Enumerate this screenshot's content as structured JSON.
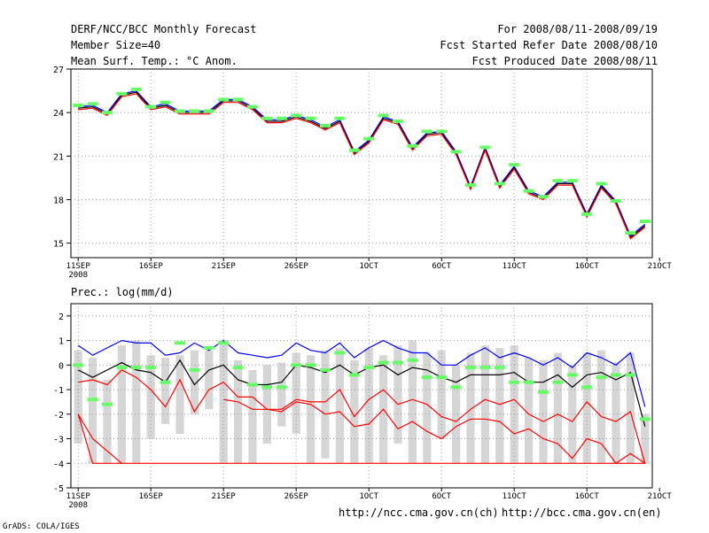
{
  "header": {
    "title": "DERF/NCC/BCC Monthly Forecast",
    "member_size": "Member Size=40",
    "variable": "Mean Surf. Temp.: °C Anom.",
    "period": "For 2008/08/11-2008/09/19",
    "started": "Fcst Started Refer Date 2008/08/10",
    "produced": "Fcst Produced Date 2008/08/11"
  },
  "footer": {
    "url_ncc": "http://ncc.cma.gov.cn(ch)",
    "url_bcc": "http://bcc.cma.gov.cn(en)",
    "credit": "GrADS: COLA/IGES"
  },
  "colors": {
    "upper": "#0000ff",
    "mean": "#000000",
    "lower": "#ff0000",
    "obs": "#66ff66",
    "spread": "#d6d6d6",
    "grid": "#999999",
    "axis": "#000000"
  },
  "chart_data": [
    {
      "type": "line",
      "title": "Mean Surf. Temp.: °C Anom.",
      "x": [
        1,
        2,
        3,
        4,
        5,
        6,
        7,
        8,
        9,
        10,
        11,
        12,
        13,
        14,
        15,
        16,
        17,
        18,
        19,
        20,
        21,
        22,
        23,
        24,
        25,
        26,
        27,
        28,
        29,
        30,
        31,
        32,
        33,
        34,
        35,
        36,
        37,
        38,
        39,
        40
      ],
      "xlim": [
        0.5,
        40.5
      ],
      "ylim": [
        14,
        27
      ],
      "yticks": [
        15,
        18,
        21,
        24,
        27
      ],
      "xtick_labels": [
        {
          "x": 1,
          "label": "11SEP"
        },
        {
          "x": 6,
          "label": "16SEP"
        },
        {
          "x": 11,
          "label": "21SEP"
        },
        {
          "x": 16,
          "label": "26SEP"
        },
        {
          "x": 21,
          "label": "1OCT"
        },
        {
          "x": 26,
          "label": "6OCT"
        },
        {
          "x": 31,
          "label": "11OCT"
        },
        {
          "x": 36,
          "label": "16OCT"
        },
        {
          "x": 41,
          "label": "21OCT"
        }
      ],
      "year_label": "2008",
      "series": [
        {
          "name": "upper",
          "values": [
            24.4,
            24.5,
            24.0,
            25.3,
            25.5,
            24.4,
            24.6,
            24.1,
            24.1,
            24.1,
            24.9,
            24.9,
            24.4,
            23.5,
            23.5,
            23.8,
            23.5,
            23.0,
            23.5,
            21.3,
            22.1,
            23.7,
            23.4,
            21.6,
            22.6,
            22.7,
            21.3,
            18.9,
            21.6,
            19.0,
            20.3,
            18.6,
            18.2,
            19.2,
            19.2,
            17.0,
            19.0,
            17.9,
            15.5,
            16.3
          ]
        },
        {
          "name": "mean",
          "values": [
            24.3,
            24.4,
            23.9,
            25.2,
            25.4,
            24.3,
            24.5,
            24.0,
            24.0,
            24.0,
            24.8,
            24.8,
            24.3,
            23.4,
            23.4,
            23.7,
            23.4,
            22.9,
            23.4,
            21.2,
            22.0,
            23.6,
            23.3,
            21.5,
            22.5,
            22.6,
            21.2,
            18.8,
            21.5,
            18.9,
            20.2,
            18.5,
            18.1,
            19.1,
            19.1,
            16.9,
            18.9,
            17.8,
            15.4,
            16.2
          ]
        },
        {
          "name": "lower",
          "values": [
            24.2,
            24.3,
            23.8,
            25.1,
            25.3,
            24.2,
            24.4,
            23.9,
            23.9,
            23.9,
            24.7,
            24.7,
            24.2,
            23.3,
            23.3,
            23.6,
            23.3,
            22.8,
            23.3,
            21.1,
            21.9,
            23.5,
            23.2,
            21.4,
            22.4,
            22.5,
            21.1,
            18.7,
            21.4,
            18.8,
            20.1,
            18.4,
            18.0,
            19.0,
            19.0,
            16.8,
            18.8,
            17.7,
            15.3,
            16.1
          ]
        },
        {
          "name": "obs",
          "values": [
            24.5,
            24.6,
            24.0,
            25.3,
            25.6,
            24.4,
            24.7,
            24.1,
            24.1,
            24.1,
            24.9,
            24.9,
            24.4,
            23.6,
            23.6,
            23.8,
            23.6,
            23.1,
            23.6,
            21.4,
            22.2,
            23.8,
            23.4,
            21.7,
            22.7,
            22.7,
            21.3,
            19.0,
            21.6,
            19.1,
            20.4,
            18.6,
            18.2,
            19.3,
            19.3,
            17.0,
            19.1,
            17.9,
            15.7,
            16.5
          ]
        }
      ]
    },
    {
      "type": "line",
      "title": "Prec.: log(mm/d)",
      "x": [
        1,
        2,
        3,
        4,
        5,
        6,
        7,
        8,
        9,
        10,
        11,
        12,
        13,
        14,
        15,
        16,
        17,
        18,
        19,
        20,
        21,
        22,
        23,
        24,
        25,
        26,
        27,
        28,
        29,
        30,
        31,
        32,
        33,
        34,
        35,
        36,
        37,
        38,
        39,
        40
      ],
      "xlim": [
        0.5,
        40.5
      ],
      "ylim": [
        -5,
        2.5
      ],
      "yticks": [
        -5,
        -4,
        -3,
        -2,
        -1,
        0,
        1,
        2
      ],
      "xtick_labels": [
        {
          "x": 1,
          "label": "11SEP"
        },
        {
          "x": 6,
          "label": "16SEP"
        },
        {
          "x": 11,
          "label": "21SEP"
        },
        {
          "x": 16,
          "label": "26SEP"
        },
        {
          "x": 21,
          "label": "1OCT"
        },
        {
          "x": 26,
          "label": "6OCT"
        },
        {
          "x": 31,
          "label": "11OCT"
        },
        {
          "x": 36,
          "label": "16OCT"
        },
        {
          "x": 41,
          "label": "21OCT"
        }
      ],
      "year_label": "2008",
      "spread_bars": [
        {
          "lo": -3.2,
          "hi": 0.6
        },
        {
          "lo": -4.0,
          "hi": 0.3
        },
        {
          "lo": -4.0,
          "hi": -0.6
        },
        {
          "lo": -4.0,
          "hi": 0.8
        },
        {
          "lo": -4.0,
          "hi": 1.0
        },
        {
          "lo": -3.0,
          "hi": 0.4
        },
        {
          "lo": -2.4,
          "hi": 0.3
        },
        {
          "lo": -2.8,
          "hi": 0.4
        },
        {
          "lo": -2.0,
          "hi": 0.6
        },
        {
          "lo": -1.8,
          "hi": 0.6
        },
        {
          "lo": -4.0,
          "hi": 1.0
        },
        {
          "lo": -4.0,
          "hi": 0.2
        },
        {
          "lo": -4.0,
          "hi": -0.2
        },
        {
          "lo": -3.2,
          "hi": 0.0
        },
        {
          "lo": -2.5,
          "hi": 0.1
        },
        {
          "lo": -2.8,
          "hi": 0.5
        },
        {
          "lo": -4.0,
          "hi": 0.4
        },
        {
          "lo": -3.8,
          "hi": 0.6
        },
        {
          "lo": -4.0,
          "hi": 0.7
        },
        {
          "lo": -4.0,
          "hi": 0.2
        },
        {
          "lo": -4.0,
          "hi": 0.7
        },
        {
          "lo": -4.0,
          "hi": 0.4
        },
        {
          "lo": -3.2,
          "hi": 0.8
        },
        {
          "lo": -4.0,
          "hi": 1.0
        },
        {
          "lo": -4.0,
          "hi": 0.5
        },
        {
          "lo": -3.0,
          "hi": 0.6
        },
        {
          "lo": -4.0,
          "hi": 0.0
        },
        {
          "lo": -4.0,
          "hi": 0.5
        },
        {
          "lo": -4.0,
          "hi": 0.8
        },
        {
          "lo": -4.0,
          "hi": 0.7
        },
        {
          "lo": -4.0,
          "hi": 0.8
        },
        {
          "lo": -4.0,
          "hi": 0.3
        },
        {
          "lo": -4.0,
          "hi": 0.2
        },
        {
          "lo": -4.0,
          "hi": 0.5
        },
        {
          "lo": -4.0,
          "hi": 0.0
        },
        {
          "lo": -4.0,
          "hi": 0.5
        },
        {
          "lo": -4.0,
          "hi": 0.6
        },
        {
          "lo": -4.0,
          "hi": 0.1
        },
        {
          "lo": -4.0,
          "hi": 0.5
        },
        {
          "lo": -4.0,
          "hi": -2.0
        }
      ],
      "series": [
        {
          "name": "upper",
          "values": [
            0.8,
            0.4,
            0.7,
            1.0,
            0.9,
            0.9,
            0.4,
            0.5,
            0.9,
            0.6,
            1.0,
            0.5,
            0.4,
            0.3,
            0.4,
            0.9,
            0.6,
            0.5,
            0.9,
            0.3,
            0.7,
            1.0,
            0.7,
            0.5,
            0.5,
            0.0,
            0.0,
            0.4,
            0.7,
            0.3,
            0.5,
            0.3,
            0.0,
            0.3,
            -0.1,
            0.5,
            0.3,
            0.0,
            0.5,
            -1.7
          ]
        },
        {
          "name": "mean",
          "values": [
            -0.2,
            -0.5,
            -0.2,
            0.1,
            -0.2,
            -0.3,
            -0.7,
            0.2,
            -0.8,
            -0.2,
            0.0,
            -0.6,
            -0.8,
            -0.8,
            -0.7,
            0.0,
            -0.1,
            -0.3,
            0.0,
            -0.4,
            -0.1,
            0.0,
            -0.4,
            -0.1,
            -0.2,
            -0.5,
            -0.7,
            -0.4,
            -0.4,
            -0.4,
            -0.3,
            -0.7,
            -0.7,
            -0.4,
            -0.9,
            -0.4,
            -0.3,
            -0.6,
            -0.3,
            -2.5
          ]
        },
        {
          "name": "lower",
          "values": [
            -0.7,
            -0.6,
            -0.8,
            -0.2,
            -0.5,
            -1.0,
            -1.7,
            -0.6,
            -1.9,
            -1.0,
            -0.7,
            -1.3,
            -1.3,
            -1.8,
            -1.8,
            -1.4,
            -1.5,
            -1.5,
            -1.0,
            -2.1,
            -1.4,
            -1.0,
            -1.6,
            -1.4,
            -1.6,
            -2.1,
            -2.3,
            -1.8,
            -1.4,
            -1.6,
            -1.4,
            -2.0,
            -2.3,
            -2.0,
            -2.3,
            -1.5,
            -2.1,
            -2.3,
            -1.9,
            -4.0
          ]
        },
        {
          "name": "min",
          "values": [
            -2.0,
            -4.0,
            -4.0,
            -4.0,
            -4.0,
            -4.0,
            -4.0,
            -4.0,
            -4.0,
            -4.0,
            -4.0,
            -4.0,
            -4.0,
            -4.0,
            -4.0,
            -4.0,
            -4.0,
            -4.0,
            -4.0,
            -4.0,
            -4.0,
            -4.0,
            -4.0,
            -4.0,
            -4.0,
            -4.0,
            -4.0,
            -4.0,
            -4.0,
            -4.0,
            -4.0,
            -4.0,
            -4.0,
            -4.0,
            -4.0,
            -4.0,
            -4.0,
            -4.0,
            -4.0,
            -4.0
          ]
        },
        {
          "name": "low_tail",
          "values": [
            -2.0,
            -3.0,
            -3.5,
            -4.0,
            null,
            null,
            null,
            null,
            null,
            null,
            null,
            null,
            null,
            null,
            null,
            null,
            null,
            null,
            null,
            null,
            null,
            null,
            null,
            null,
            null,
            null,
            null,
            null,
            null,
            null,
            null,
            null,
            null,
            null,
            null,
            null,
            null,
            null,
            null,
            null
          ]
        },
        {
          "name": "lowest_wave",
          "values": [
            null,
            null,
            null,
            null,
            null,
            null,
            null,
            null,
            null,
            null,
            -1.4,
            -1.5,
            -1.8,
            -1.8,
            -1.9,
            -1.5,
            -1.6,
            -2.0,
            -1.9,
            -2.5,
            -2.4,
            -1.8,
            -2.6,
            -2.3,
            -2.7,
            -3.0,
            -2.5,
            -2.2,
            -2.2,
            -2.3,
            -2.8,
            -2.6,
            -3.0,
            -3.2,
            -3.8,
            -3.0,
            -3.2,
            -4.0,
            -3.6,
            -4.0
          ]
        },
        {
          "name": "obs",
          "values": [
            0.0,
            -1.4,
            -1.6,
            -0.1,
            -0.1,
            -0.1,
            -0.7,
            0.9,
            -0.2,
            0.7,
            0.9,
            -0.1,
            -0.8,
            -0.9,
            -0.9,
            0.0,
            0.0,
            -0.2,
            0.5,
            -0.4,
            -0.1,
            0.1,
            0.1,
            0.2,
            -0.5,
            -0.5,
            -0.9,
            -0.1,
            -0.1,
            -0.1,
            -0.7,
            -0.7,
            -1.1,
            -0.7,
            -0.4,
            -0.9,
            -0.5,
            -0.4,
            -0.4,
            -2.2
          ]
        }
      ]
    }
  ]
}
